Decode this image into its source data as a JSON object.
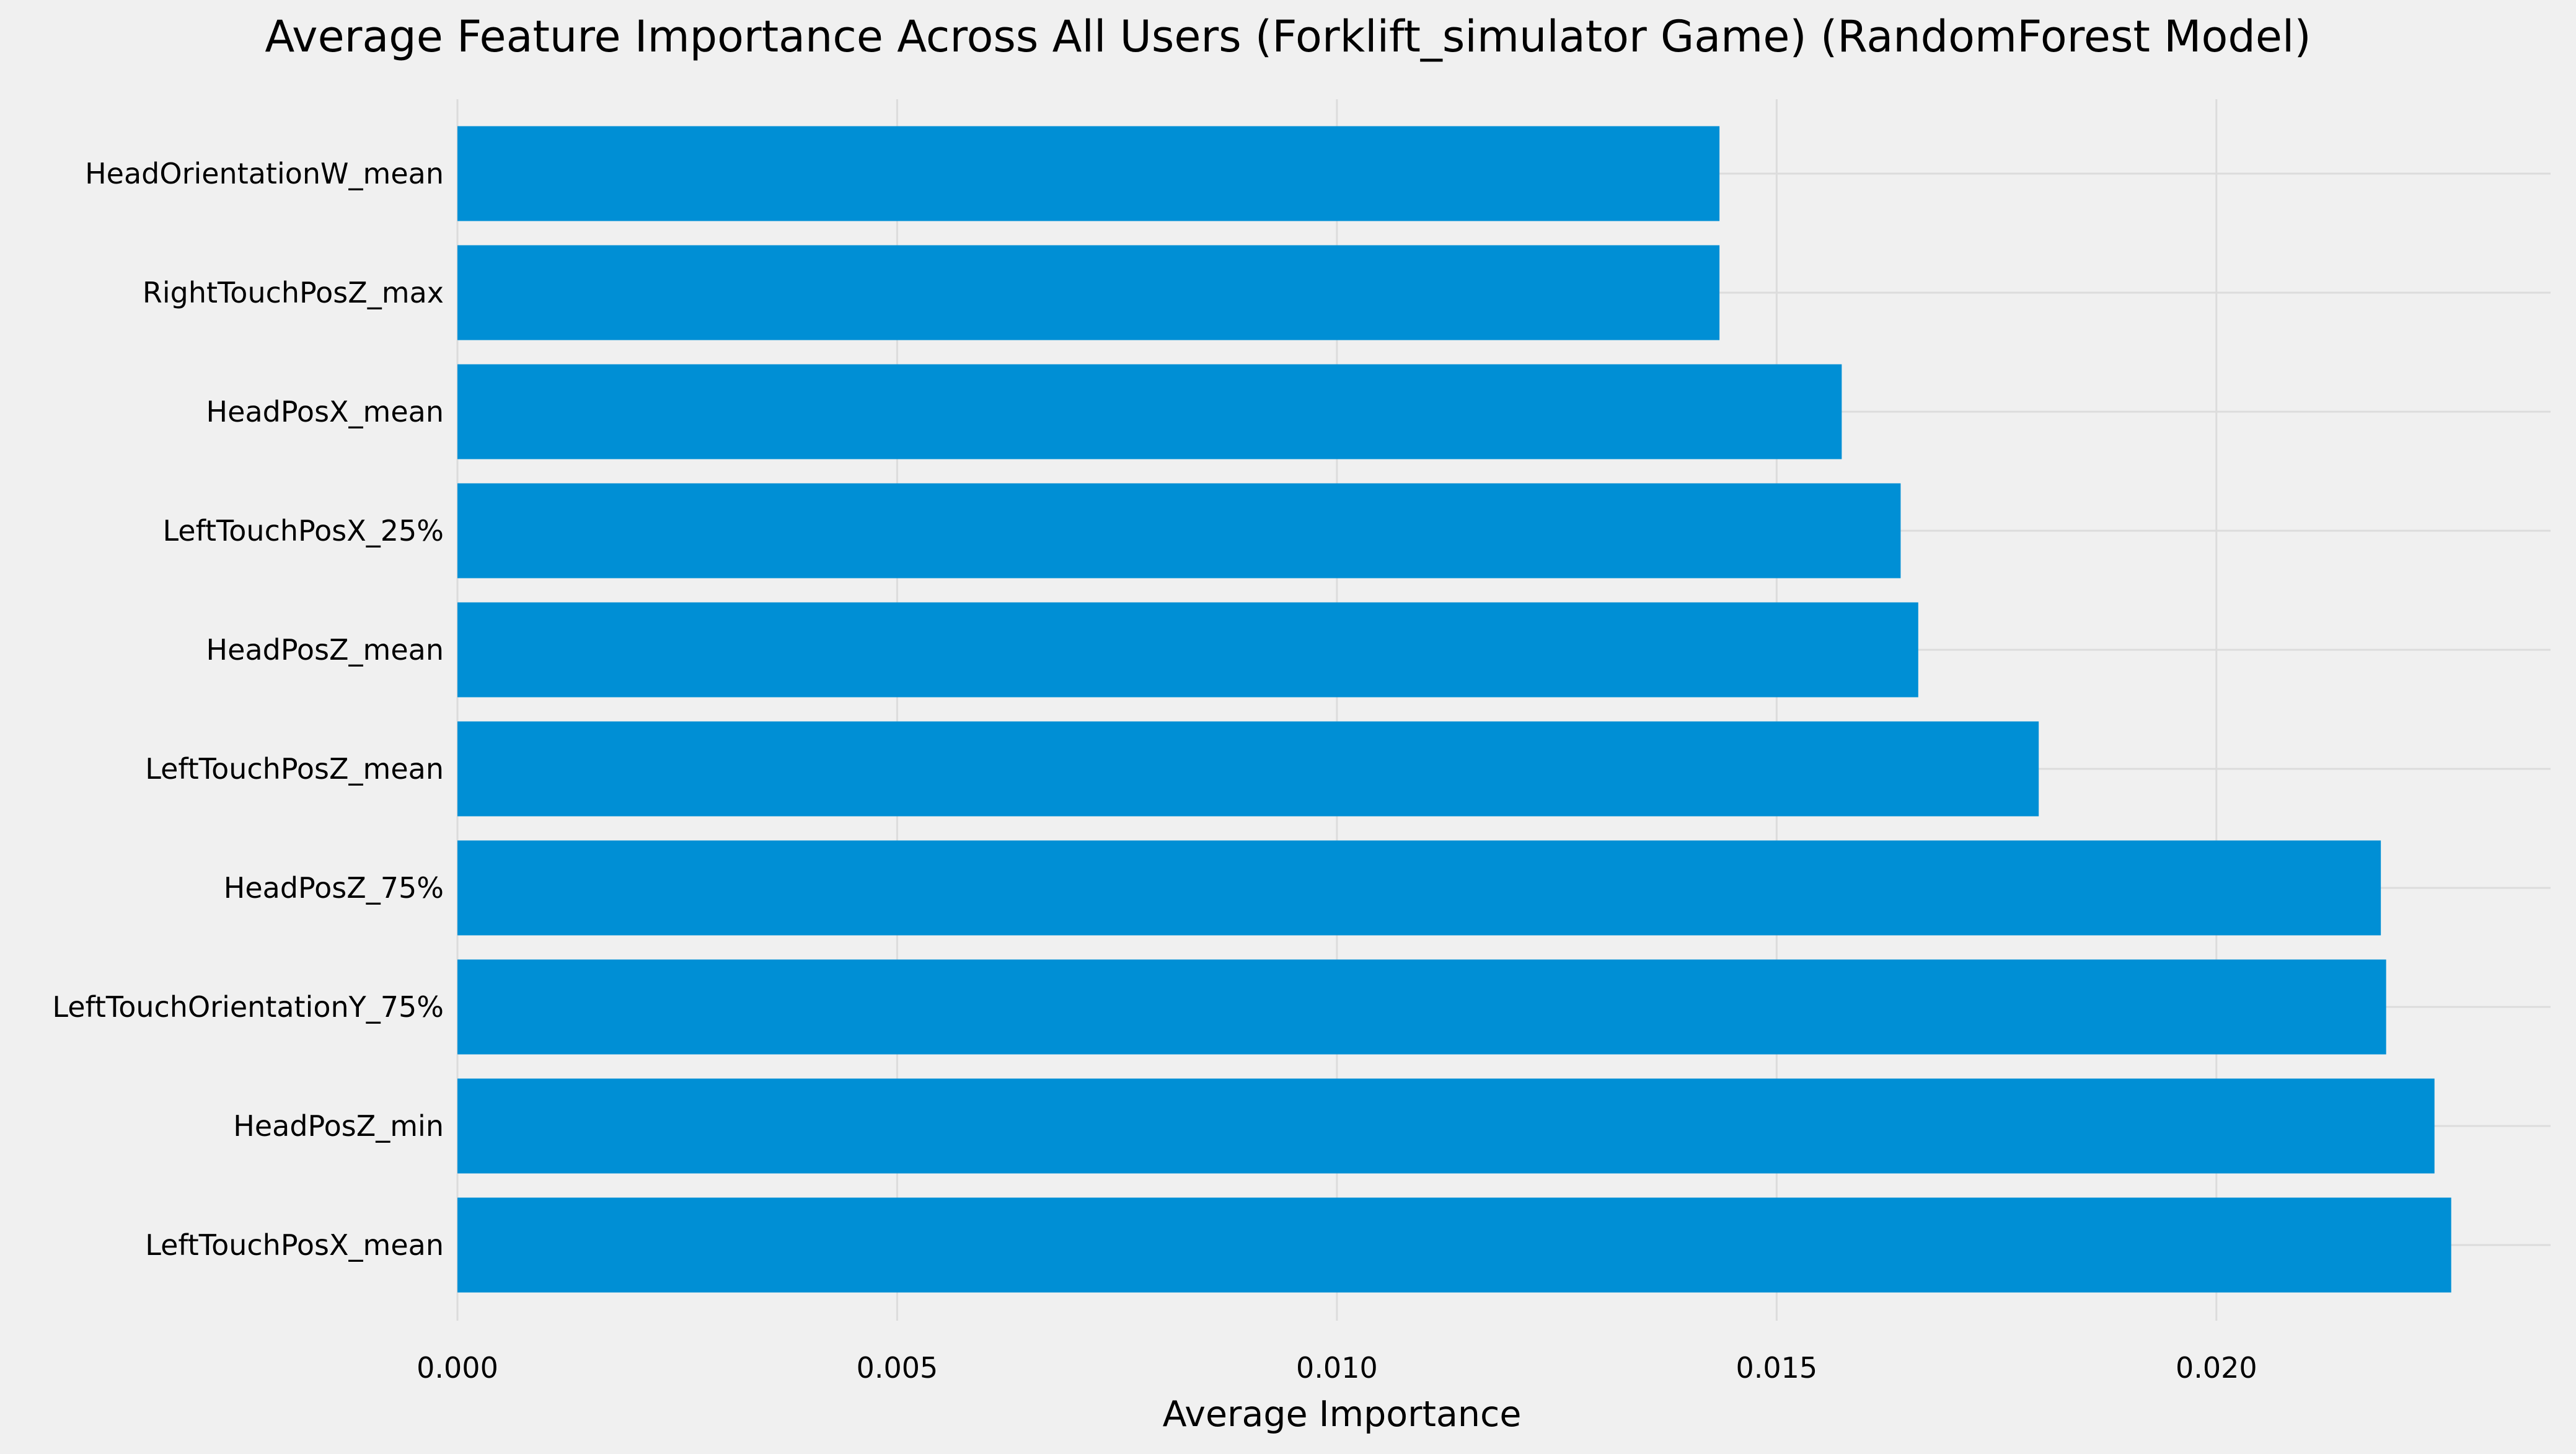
{
  "chart_data": {
    "type": "bar",
    "orientation": "horizontal",
    "title": "Average Feature Importance Across All Users (Forklift_simulator Game) (RandomForest Model)",
    "xlabel": "Average Importance",
    "ylabel": "",
    "categories": [
      "LeftTouchPosX_mean",
      "HeadPosZ_min",
      "LeftTouchOrientationY_75%",
      "HeadPosZ_75%",
      "LeftTouchPosZ_mean",
      "HeadPosZ_mean",
      "LeftTouchPosX_25%",
      "HeadPosX_mean",
      "RightTouchPosZ_max",
      "HeadOrientationW_mean"
    ],
    "values": [
      0.02267,
      0.02248,
      0.02193,
      0.02187,
      0.01798,
      0.01661,
      0.01641,
      0.01574,
      0.01435,
      0.01435
    ],
    "xlim": [
      0,
      0.0238
    ],
    "xticks": [
      0.0,
      0.005,
      0.01,
      0.015,
      0.02
    ],
    "xtick_labels": [
      "0.000",
      "0.005",
      "0.010",
      "0.015",
      "0.020"
    ],
    "grid": true,
    "legend": "none",
    "colors": {
      "bar": "#008fd5",
      "background": "#f0f0f0",
      "grid": "#dcdcdc"
    }
  }
}
